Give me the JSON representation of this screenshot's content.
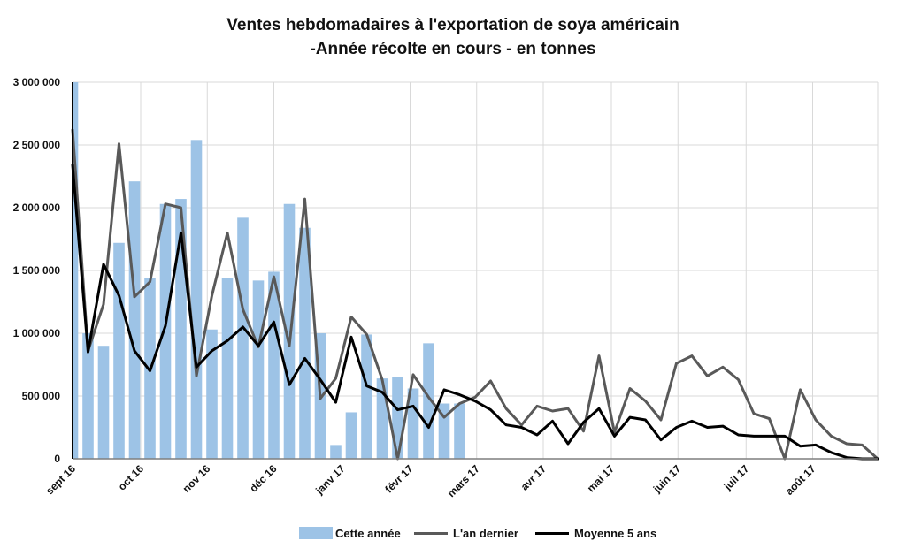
{
  "chart_data": {
    "type": "bar",
    "title_line1": "Ventes hebdomadaires à l'exportation de soya américain",
    "title_line2": "-Année récolte en cours - en tonnes",
    "ylim": [
      0,
      3000000
    ],
    "y_ticks": [
      {
        "value": 0,
        "label": "0"
      },
      {
        "value": 500000,
        "label": "500 000"
      },
      {
        "value": 1000000,
        "label": "1 000 000"
      },
      {
        "value": 1500000,
        "label": "1 500 000"
      },
      {
        "value": 2000000,
        "label": "2 000 000"
      },
      {
        "value": 2500000,
        "label": "2 500 000"
      },
      {
        "value": 3000000,
        "label": "3 000 000"
      }
    ],
    "week_count": 53,
    "x_ticks": [
      {
        "week": 0,
        "label": "sept 16"
      },
      {
        "week": 4.4,
        "label": "oct 16"
      },
      {
        "week": 8.7,
        "label": "nov 16"
      },
      {
        "week": 13,
        "label": "déc 16"
      },
      {
        "week": 17.4,
        "label": "janv 17"
      },
      {
        "week": 21.8,
        "label": "févr 17"
      },
      {
        "week": 26.1,
        "label": "mars 17"
      },
      {
        "week": 30.4,
        "label": "avr 17"
      },
      {
        "week": 34.8,
        "label": "mai 17"
      },
      {
        "week": 39.1,
        "label": "juin 17"
      },
      {
        "week": 43.5,
        "label": "juil 17"
      },
      {
        "week": 47.8,
        "label": "août 17"
      }
    ],
    "grid": true,
    "legend_position": "bottom",
    "series": [
      {
        "name": "Cette année",
        "type": "bar",
        "color": "#9DC3E6",
        "values": [
          3000000,
          1000000,
          900000,
          1720000,
          2210000,
          1440000,
          2030000,
          2070000,
          2540000,
          1030000,
          1440000,
          1920000,
          1420000,
          1490000,
          2030000,
          1840000,
          1000000,
          110000,
          370000,
          990000,
          640000,
          650000,
          560000,
          920000,
          440000,
          440000
        ]
      },
      {
        "name": "L'an dernier",
        "type": "line",
        "color": "#595959",
        "values": [
          2620000,
          860000,
          1230000,
          2510000,
          1290000,
          1410000,
          2030000,
          2000000,
          660000,
          1300000,
          1800000,
          1190000,
          890000,
          1450000,
          900000,
          2070000,
          480000,
          640000,
          1130000,
          990000,
          630000,
          0,
          670000,
          490000,
          330000,
          440000,
          490000,
          620000,
          400000,
          270000,
          420000,
          380000,
          400000,
          220000,
          820000,
          210000,
          560000,
          460000,
          310000,
          760000,
          820000,
          660000,
          730000,
          630000,
          360000,
          320000,
          0,
          550000,
          310000,
          180000,
          120000,
          110000,
          0
        ]
      },
      {
        "name": "Moyenne 5 ans",
        "type": "line",
        "color": "#000000",
        "values": [
          2340000,
          850000,
          1550000,
          1300000,
          860000,
          700000,
          1060000,
          1800000,
          730000,
          860000,
          940000,
          1050000,
          900000,
          1090000,
          590000,
          800000,
          630000,
          450000,
          970000,
          580000,
          530000,
          390000,
          420000,
          250000,
          550000,
          510000,
          460000,
          390000,
          270000,
          250000,
          190000,
          300000,
          120000,
          290000,
          400000,
          180000,
          330000,
          310000,
          150000,
          250000,
          300000,
          250000,
          260000,
          190000,
          180000,
          180000,
          180000,
          100000,
          110000,
          50000,
          10000,
          0,
          0
        ]
      }
    ]
  }
}
